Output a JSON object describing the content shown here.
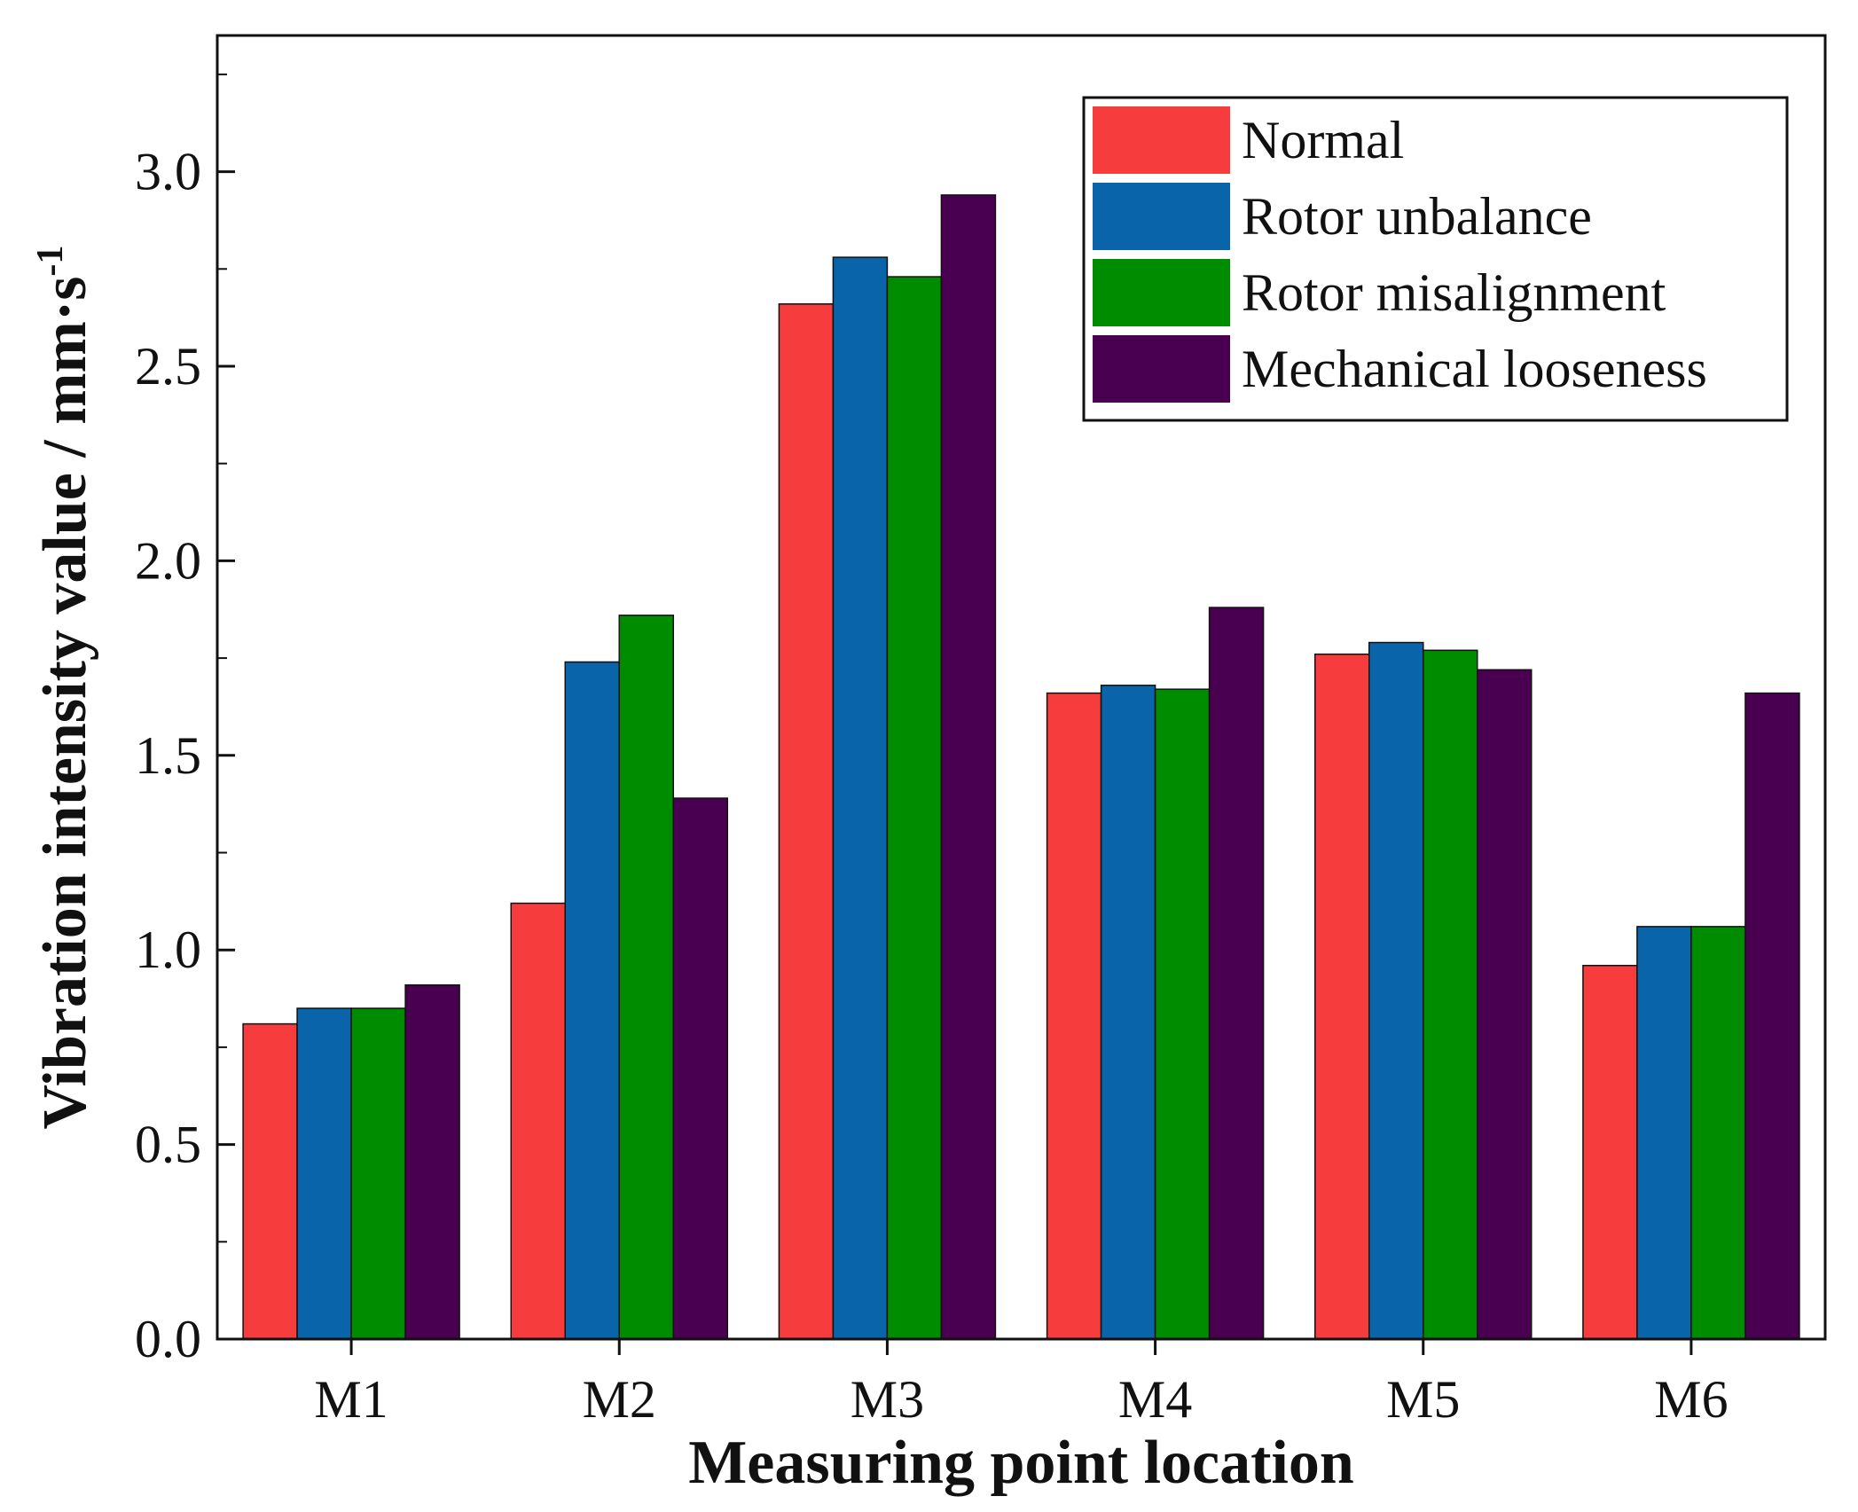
{
  "chart_data": {
    "type": "bar",
    "categories": [
      "M1",
      "M2",
      "M3",
      "M4",
      "M5",
      "M6"
    ],
    "series": [
      {
        "name": "Normal",
        "color": "#f63c3c",
        "values": [
          0.81,
          1.12,
          2.66,
          1.66,
          1.76,
          0.96
        ]
      },
      {
        "name": "Rotor unbalance",
        "color": "#0a64aa",
        "values": [
          0.85,
          1.74,
          2.78,
          1.68,
          1.79,
          1.06
        ]
      },
      {
        "name": "Rotor misalignment",
        "color": "#008c00",
        "values": [
          0.85,
          1.86,
          2.73,
          1.67,
          1.77,
          1.06
        ]
      },
      {
        "name": "Mechanical looseness",
        "color": "#4a0050",
        "values": [
          0.91,
          1.39,
          2.94,
          1.88,
          1.72,
          1.66
        ]
      }
    ],
    "xlabel": "Measuring point location",
    "ylabel": "Vibration intensity value / mm·s",
    "ylabel_superscript": "-1",
    "ylim": [
      0,
      3.35
    ],
    "yticks": [
      "0.0",
      "0.5",
      "1.0",
      "1.5",
      "2.0",
      "2.5",
      "3.0"
    ],
    "legend_position": "top-right",
    "grid": false
  }
}
